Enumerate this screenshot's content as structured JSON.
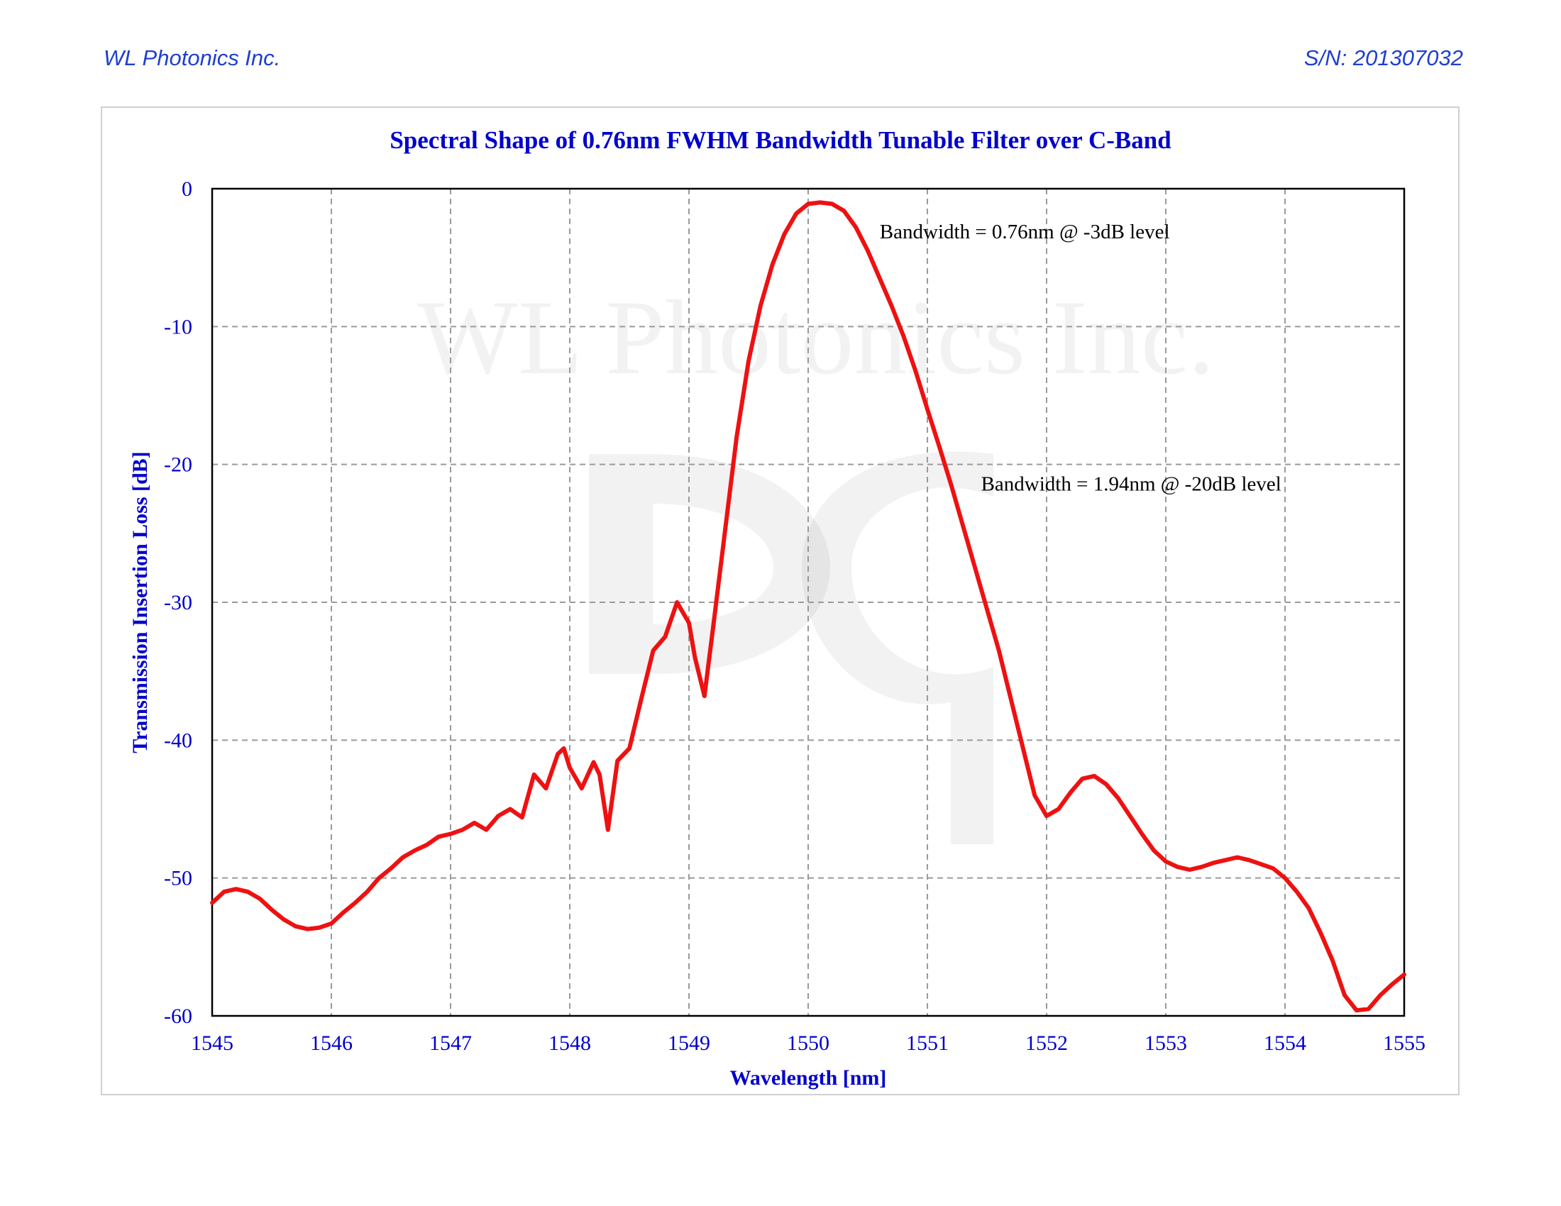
{
  "header": {
    "company": "WL Photonics Inc.",
    "serial": "S/N: 201307032"
  },
  "watermark": {
    "text": "WL Photonics Inc."
  },
  "colors": {
    "accent": "#0000cc",
    "curve": "#ee1111",
    "header": "#1f3fd0",
    "grid": "#9a9a9a"
  },
  "chart_data": {
    "type": "line",
    "title": "Spectral Shape of 0.76nm FWHM Bandwidth Tunable Filter over C-Band",
    "xlabel": "Wavelength [nm]",
    "ylabel": "Transmission Insertion Loss [dB]",
    "xlim": [
      1545,
      1555
    ],
    "ylim": [
      -60,
      0
    ],
    "xticks": [
      "1545",
      "1546",
      "1547",
      "1548",
      "1549",
      "1550",
      "1551",
      "1552",
      "1553",
      "1554",
      "1555"
    ],
    "yticks": [
      "0",
      "-10",
      "-20",
      "-30",
      "-40",
      "-50",
      "-60"
    ],
    "grid": true,
    "annotations": [
      {
        "text": "Bandwidth = 0.76nm @ -3dB level",
        "x": 1550.6,
        "y": -3.6
      },
      {
        "text": "Bandwidth = 1.94nm @ -20dB level",
        "x": 1551.45,
        "y": -21.9
      }
    ],
    "series": [
      {
        "name": "Spectral Shape",
        "x": [
          1545.0,
          1545.1,
          1545.2,
          1545.3,
          1545.4,
          1545.5,
          1545.6,
          1545.7,
          1545.8,
          1545.9,
          1546.0,
          1546.1,
          1546.2,
          1546.3,
          1546.4,
          1546.5,
          1546.6,
          1546.7,
          1546.8,
          1546.9,
          1547.0,
          1547.1,
          1547.2,
          1547.3,
          1547.4,
          1547.5,
          1547.6,
          1547.7,
          1547.8,
          1547.9,
          1547.95,
          1548.0,
          1548.1,
          1548.2,
          1548.25,
          1548.32,
          1548.4,
          1548.5,
          1548.6,
          1548.7,
          1548.8,
          1548.9,
          1549.0,
          1549.05,
          1549.13,
          1549.2,
          1549.3,
          1549.4,
          1549.5,
          1549.6,
          1549.7,
          1549.8,
          1549.9,
          1550.0,
          1550.1,
          1550.2,
          1550.3,
          1550.4,
          1550.5,
          1550.6,
          1550.7,
          1550.8,
          1550.9,
          1551.0,
          1551.1,
          1551.2,
          1551.3,
          1551.4,
          1551.5,
          1551.6,
          1551.7,
          1551.8,
          1551.9,
          1552.0,
          1552.1,
          1552.2,
          1552.3,
          1552.4,
          1552.5,
          1552.6,
          1552.7,
          1552.8,
          1552.9,
          1553.0,
          1553.1,
          1553.2,
          1553.3,
          1553.4,
          1553.5,
          1553.6,
          1553.7,
          1553.8,
          1553.9,
          1554.0,
          1554.1,
          1554.2,
          1554.3,
          1554.4,
          1554.5,
          1554.6,
          1554.7,
          1554.8,
          1554.9,
          1555.0
        ],
        "y": [
          -51.8,
          -51.0,
          -50.8,
          -51.0,
          -51.5,
          -52.3,
          -53.0,
          -53.5,
          -53.7,
          -53.6,
          -53.3,
          -52.5,
          -51.8,
          -51.0,
          -50.0,
          -49.3,
          -48.5,
          -48.0,
          -47.6,
          -47.0,
          -46.8,
          -46.5,
          -46.0,
          -46.5,
          -45.5,
          -45.0,
          -45.6,
          -42.5,
          -43.5,
          -41.0,
          -40.6,
          -42.0,
          -43.5,
          -41.6,
          -42.5,
          -46.5,
          -41.5,
          -40.6,
          -37.0,
          -33.5,
          -32.5,
          -30.0,
          -31.5,
          -34.0,
          -36.8,
          -32.0,
          -25.0,
          -18.0,
          -12.5,
          -8.5,
          -5.5,
          -3.3,
          -1.8,
          -1.1,
          -1.0,
          -1.1,
          -1.6,
          -2.8,
          -4.5,
          -6.5,
          -8.5,
          -10.7,
          -13.2,
          -16.0,
          -18.7,
          -21.5,
          -24.5,
          -27.5,
          -30.5,
          -33.5,
          -37.0,
          -40.5,
          -44.0,
          -45.5,
          -45.0,
          -43.8,
          -42.8,
          -42.6,
          -43.2,
          -44.2,
          -45.5,
          -46.8,
          -48.0,
          -48.8,
          -49.2,
          -49.4,
          -49.2,
          -48.9,
          -48.7,
          -48.5,
          -48.7,
          -49.0,
          -49.3,
          -50.0,
          -51.0,
          -52.2,
          -54.0,
          -56.0,
          -58.5,
          -59.6,
          -59.5,
          -58.5,
          -57.7,
          -57.0
        ]
      }
    ]
  }
}
